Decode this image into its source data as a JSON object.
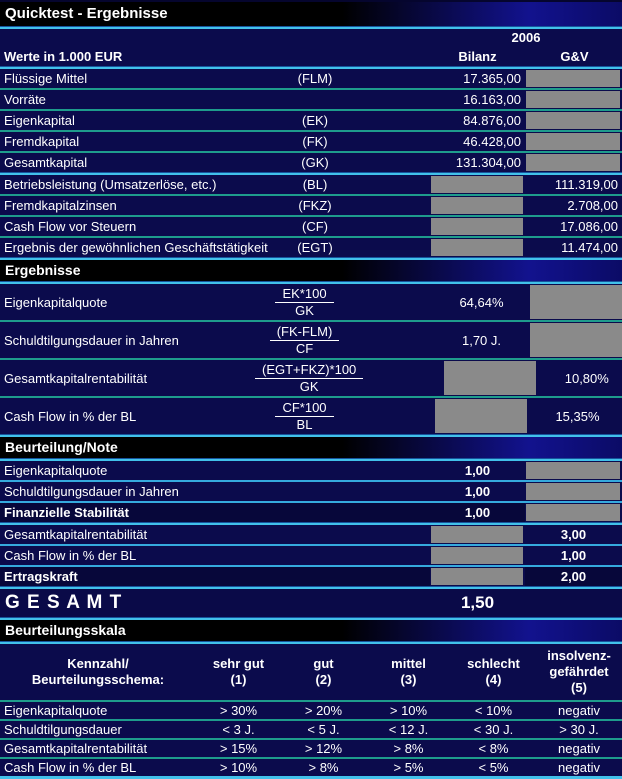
{
  "title": "Quicktest - Ergebnisse",
  "header": {
    "year": "2006",
    "values_label": "Werte in 1.000 EUR",
    "col_bilanz": "Bilanz",
    "col_guv": "G&V"
  },
  "input_rows": [
    {
      "label": "Flüssige Mittel",
      "code": "(FLM)",
      "bilanz": "17.365,00"
    },
    {
      "label": "Vorräte",
      "code": "",
      "bilanz": "16.163,00"
    },
    {
      "label": "Eigenkapital",
      "code": "(EK)",
      "bilanz": "84.876,00"
    },
    {
      "label": "Fremdkapital",
      "code": "(FK)",
      "bilanz": "46.428,00"
    },
    {
      "label": "Gesamtkapital",
      "code": "(GK)",
      "bilanz": "131.304,00"
    }
  ],
  "guv_rows": [
    {
      "label": "Betriebsleistung (Umsatzerlöse, etc.)",
      "code": "(BL)",
      "guv": "111.319,00"
    },
    {
      "label": "Fremdkapitalzinsen",
      "code": "(FKZ)",
      "guv": "2.708,00"
    },
    {
      "label": "Cash Flow vor Steuern",
      "code": "(CF)",
      "guv": "17.086,00"
    },
    {
      "label": "Ergebnis der gewöhnlichen Geschäftstätigkeit",
      "code": "(EGT)",
      "guv": "11.474,00"
    }
  ],
  "sections": {
    "ergebnisse": "Ergebnisse",
    "beurteilung": "Beurteilung/Note",
    "skala": "Beurteilungsskala"
  },
  "ratio_rows": [
    {
      "label": "Eigenkapitalquote",
      "numerator": "EK*100",
      "denominator": "GK",
      "value": "64,64%"
    },
    {
      "label": "Schuldtilgungsdauer in Jahren",
      "numerator": "(FK-FLM)",
      "denominator": "CF",
      "value": "1,70 J."
    },
    {
      "label": "Gesamtkapitalrentabilität",
      "numerator": "(EGT+FKZ)*100",
      "denominator": "GK",
      "value": "10,80%"
    },
    {
      "label": "Cash Flow in % der BL",
      "numerator": "CF*100",
      "denominator": "BL",
      "value": "15,35%"
    }
  ],
  "note_rows": [
    {
      "label": "Eigenkapitalquote",
      "value": "1,00"
    },
    {
      "label": "Schuldtilgungsdauer in Jahren",
      "value": "1,00"
    },
    {
      "label": "Finanzielle Stabilität",
      "value": "1,00"
    },
    {
      "label": "Gesamtkapitalrentabilität",
      "value": "3,00"
    },
    {
      "label": "Cash Flow in % der BL",
      "value": "1,00"
    },
    {
      "label": "Ertragskraft",
      "value": "2,00"
    }
  ],
  "total": {
    "label": "G E S A M T",
    "value": "1,50"
  },
  "scale_table": {
    "header_label": "Kennzahl/\nBeurteilungsschema:",
    "columns": [
      "sehr gut\n(1)",
      "gut\n(2)",
      "mittel\n(3)",
      "schlecht\n(4)",
      "insolvenz-\ngefährdet\n(5)"
    ],
    "rows": [
      {
        "label": "Eigenkapitalquote",
        "values": [
          "> 30%",
          "> 20%",
          "> 10%",
          "< 10%",
          "negativ"
        ]
      },
      {
        "label": "Schuldtilgungsdauer",
        "values": [
          "< 3 J.",
          "< 5 J.",
          "< 12 J.",
          "< 30 J.",
          "> 30 J."
        ]
      },
      {
        "label": "Gesamtkapitalrentabilität",
        "values": [
          "> 15%",
          "> 12%",
          "> 8%",
          "< 8%",
          "negativ"
        ]
      },
      {
        "label": "Cash Flow in % der BL",
        "values": [
          "> 10%",
          "> 8%",
          "> 5%",
          "< 5%",
          "negativ"
        ]
      }
    ]
  },
  "colors": {
    "background": "#0b0b4c",
    "section_bar": "#000000",
    "gridline_teal": "#1e9c8c",
    "gridline_cyan": "#42c1ea",
    "divider_blue": "#17549c",
    "input_cell_gray": "#8a8a8a",
    "text": "#ffffff"
  }
}
